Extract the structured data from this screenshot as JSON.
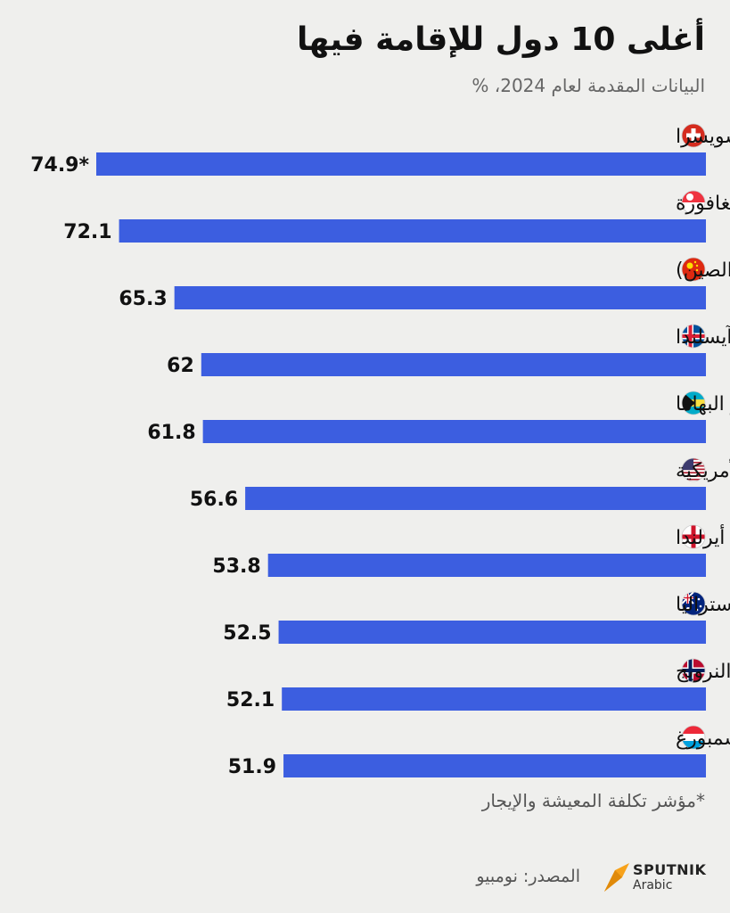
{
  "header": {
    "title": "أغلى 10 دول للإقامة فيها",
    "subtitle": "البيانات المقدمة لعام 2024، %"
  },
  "chart_data": {
    "type": "bar",
    "orientation": "horizontal",
    "title": "أغلى 10 دول للإقامة فيها",
    "subtitle": "البيانات المقدمة لعام 2024، %",
    "xlabel": "",
    "ylabel": "",
    "xlim": [
      0,
      74.9
    ],
    "grid": false,
    "bar_color": "#3c5ee0",
    "categories": [
      "سويسرا",
      "سنغافورة",
      "هونغ كونغ (الصين)",
      "آيسلندا",
      "جزر البهاما",
      "الولايات المتحدة الأمريكية",
      "أيرلندا",
      "أستراليا",
      "النرويج",
      "لكسمبورغ"
    ],
    "values": [
      74.9,
      72.1,
      65.3,
      62,
      61.8,
      56.6,
      53.8,
      52.5,
      52.1,
      51.9
    ],
    "value_labels": [
      "74.9*",
      "72.1",
      "65.3",
      "62",
      "61.8",
      "56.6",
      "53.8",
      "52.5",
      "52.1",
      "51.9"
    ],
    "flags": [
      "switzerland-flag",
      "singapore-flag",
      "china-flag",
      "iceland-flag",
      "bahamas-flag",
      "usa-flag",
      "northern-ireland-flag",
      "australia-flag",
      "norway-flag",
      "luxembourg-flag"
    ]
  },
  "footnote": "*مؤشر تكلفة المعيشة والإيجار",
  "source": "المصدر: نومبيو",
  "logo": {
    "name": "SPUTNIK",
    "sub": "Arabic",
    "icon": "sputnik-logo-icon",
    "color": "#f7a21b"
  }
}
